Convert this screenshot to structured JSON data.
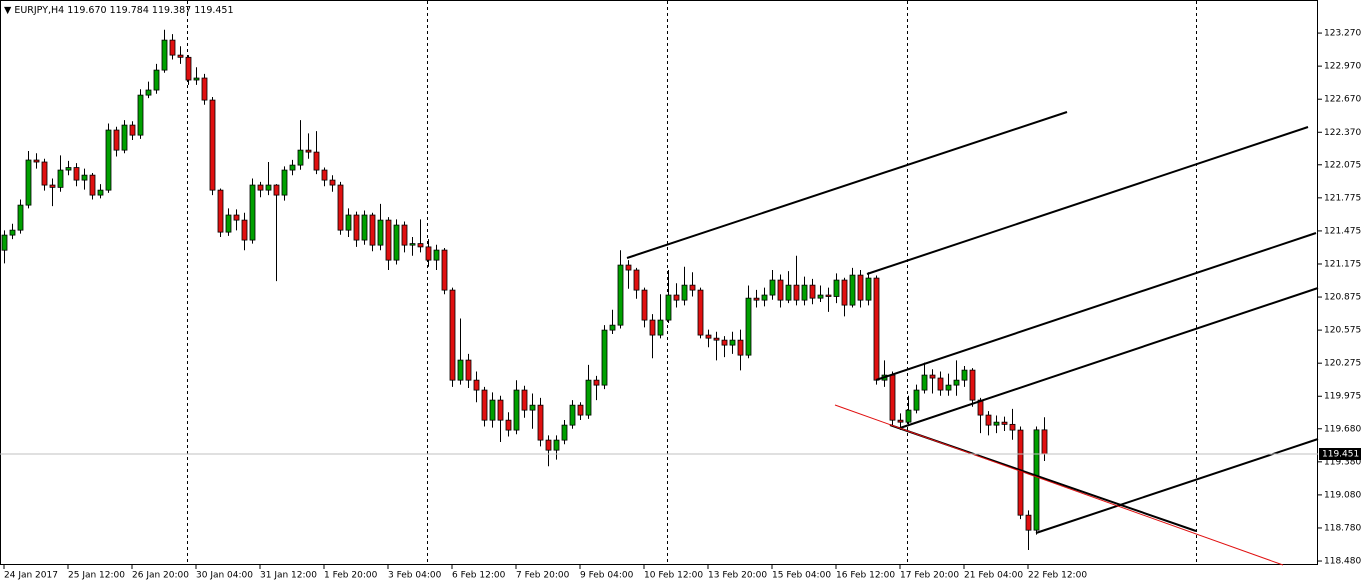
{
  "chart_data": {
    "type": "candlestick",
    "title": "EURJPY,H4",
    "header_labels": [
      "119.670",
      "119.784",
      "119.387",
      "119.451"
    ],
    "bull_color": "#00a000",
    "bear_color": "#e01010",
    "ylim": [
      118.444,
      123.57
    ],
    "xlim": [
      -0.5,
      164.25
    ],
    "yticks": [
      {
        "value": 123.27,
        "label": "123.270"
      },
      {
        "value": 122.97,
        "label": "122.970"
      },
      {
        "value": 122.67,
        "label": "122.670"
      },
      {
        "value": 122.37,
        "label": "122.370"
      },
      {
        "value": 122.075,
        "label": "122.075"
      },
      {
        "value": 121.775,
        "label": "121.775"
      },
      {
        "value": 121.475,
        "label": "121.475"
      },
      {
        "value": 121.175,
        "label": "121.175"
      },
      {
        "value": 120.875,
        "label": "120.875"
      },
      {
        "value": 120.575,
        "label": "120.575"
      },
      {
        "value": 120.275,
        "label": "120.275"
      },
      {
        "value": 119.975,
        "label": "119.975"
      },
      {
        "value": 119.68,
        "label": "119.680"
      },
      {
        "value": 119.38,
        "label": "119.380"
      },
      {
        "value": 119.08,
        "label": "119.080"
      },
      {
        "value": 118.78,
        "label": "118.780"
      },
      {
        "value": 118.48,
        "label": "118.480"
      }
    ],
    "xticks": [
      {
        "value": 0,
        "label": "24 Jan 2017"
      },
      {
        "value": 8,
        "label": "25 Jan 12:00"
      },
      {
        "value": 16,
        "label": "26 Jan 20:00"
      },
      {
        "value": 24,
        "label": "30 Jan 04:00"
      },
      {
        "value": 32,
        "label": "31 Jan 12:00"
      },
      {
        "value": 40,
        "label": "1 Feb 20:00"
      },
      {
        "value": 48,
        "label": "3 Feb 04:00"
      },
      {
        "value": 56,
        "label": "6 Feb 12:00"
      },
      {
        "value": 64,
        "label": "7 Feb 20:00"
      },
      {
        "value": 72,
        "label": "9 Feb 04:00"
      },
      {
        "value": 80,
        "label": "10 Feb 12:00"
      },
      {
        "value": 88,
        "label": "13 Feb 20:00"
      },
      {
        "value": 96,
        "label": "15 Feb 04:00"
      },
      {
        "value": 104,
        "label": "16 Feb 12:00"
      },
      {
        "value": 112,
        "label": "17 Feb 20:00"
      },
      {
        "value": 120,
        "label": "21 Feb 04:00"
      },
      {
        "value": 128,
        "label": "22 Feb 12:00"
      }
    ],
    "candles": [
      [
        121.3,
        121.48,
        121.18,
        121.437
      ],
      [
        121.437,
        121.54,
        121.4,
        121.482
      ],
      [
        121.482,
        121.76,
        121.45,
        121.709
      ],
      [
        121.709,
        122.2,
        121.68,
        122.118
      ],
      [
        122.118,
        122.18,
        122.04,
        122.1
      ],
      [
        122.1,
        122.13,
        121.84,
        121.891
      ],
      [
        121.891,
        121.95,
        121.7,
        121.87
      ],
      [
        121.87,
        122.16,
        121.83,
        122.027
      ],
      [
        122.027,
        122.11,
        121.98,
        122.05
      ],
      [
        122.05,
        122.09,
        121.88,
        121.936
      ],
      [
        121.936,
        122.04,
        121.85,
        121.981
      ],
      [
        121.981,
        122.0,
        121.76,
        121.8
      ],
      [
        121.8,
        121.9,
        121.77,
        121.845
      ],
      [
        121.845,
        122.45,
        121.82,
        122.39
      ],
      [
        122.39,
        122.42,
        122.15,
        122.208
      ],
      [
        122.208,
        122.48,
        122.18,
        122.435
      ],
      [
        122.435,
        122.47,
        122.3,
        122.344
      ],
      [
        122.344,
        122.76,
        122.31,
        122.707
      ],
      [
        122.707,
        122.83,
        122.68,
        122.753
      ],
      [
        122.753,
        122.99,
        122.72,
        122.934
      ],
      [
        122.934,
        123.3,
        122.91,
        123.206
      ],
      [
        123.206,
        123.26,
        123.03,
        123.07
      ],
      [
        123.07,
        123.15,
        122.99,
        123.05
      ],
      [
        123.05,
        123.07,
        122.8,
        122.844
      ],
      [
        122.844,
        122.96,
        122.8,
        122.862
      ],
      [
        122.862,
        122.9,
        122.62,
        122.662
      ],
      [
        122.662,
        122.69,
        121.8,
        121.845
      ],
      [
        121.845,
        121.86,
        121.42,
        121.464
      ],
      [
        121.464,
        121.68,
        121.43,
        121.619
      ],
      [
        121.619,
        121.67,
        121.48,
        121.573
      ],
      [
        121.573,
        121.64,
        121.3,
        121.392
      ],
      [
        121.392,
        121.95,
        121.36,
        121.891
      ],
      [
        121.891,
        121.92,
        121.78,
        121.845
      ],
      [
        121.845,
        122.1,
        121.8,
        121.891
      ],
      [
        121.891,
        121.9,
        121.02,
        121.8
      ],
      [
        121.8,
        122.06,
        121.75,
        122.027
      ],
      [
        122.027,
        122.12,
        121.98,
        122.072
      ],
      [
        122.072,
        122.48,
        122.03,
        122.208
      ],
      [
        122.208,
        122.36,
        122.13,
        122.19
      ],
      [
        122.19,
        122.38,
        121.99,
        122.027
      ],
      [
        122.027,
        122.05,
        121.88,
        121.936
      ],
      [
        121.936,
        121.98,
        121.83,
        121.891
      ],
      [
        121.891,
        121.92,
        121.44,
        121.482
      ],
      [
        121.482,
        121.68,
        121.42,
        121.619
      ],
      [
        121.619,
        121.65,
        121.33,
        121.392
      ],
      [
        121.392,
        121.66,
        121.35,
        121.619
      ],
      [
        121.619,
        121.64,
        121.29,
        121.346
      ],
      [
        121.346,
        121.72,
        121.3,
        121.573
      ],
      [
        121.573,
        121.6,
        121.12,
        121.21
      ],
      [
        121.21,
        121.58,
        121.17,
        121.528
      ],
      [
        121.528,
        121.56,
        121.28,
        121.346
      ],
      [
        121.346,
        121.42,
        121.25,
        121.36
      ],
      [
        121.36,
        121.58,
        121.28,
        121.33
      ],
      [
        121.33,
        121.4,
        121.15,
        121.21
      ],
      [
        121.21,
        121.35,
        121.12,
        121.301
      ],
      [
        121.301,
        121.32,
        120.9,
        120.938
      ],
      [
        120.938,
        120.96,
        120.06,
        120.121
      ],
      [
        120.121,
        120.68,
        120.08,
        120.303
      ],
      [
        120.303,
        120.36,
        120.05,
        120.121
      ],
      [
        120.121,
        120.2,
        119.92,
        120.031
      ],
      [
        120.031,
        120.06,
        119.7,
        119.758
      ],
      [
        119.758,
        120.01,
        119.69,
        119.94
      ],
      [
        119.94,
        119.98,
        119.56,
        119.758
      ],
      [
        119.758,
        119.83,
        119.61,
        119.668
      ],
      [
        119.668,
        120.12,
        119.63,
        120.031
      ],
      [
        120.031,
        120.07,
        119.78,
        119.849
      ],
      [
        119.849,
        120.0,
        119.68,
        119.894
      ],
      [
        119.894,
        119.96,
        119.52,
        119.577
      ],
      [
        119.577,
        119.62,
        119.34,
        119.486
      ],
      [
        119.486,
        119.62,
        119.4,
        119.577
      ],
      [
        119.577,
        119.76,
        119.54,
        119.713
      ],
      [
        119.713,
        119.94,
        119.68,
        119.894
      ],
      [
        119.894,
        119.92,
        119.76,
        119.804
      ],
      [
        119.804,
        120.26,
        119.77,
        120.121
      ],
      [
        120.121,
        120.16,
        119.94,
        120.076
      ],
      [
        120.076,
        120.62,
        120.04,
        120.575
      ],
      [
        120.575,
        120.76,
        120.54,
        120.62
      ],
      [
        120.62,
        121.3,
        120.59,
        121.165
      ],
      [
        121.165,
        121.21,
        120.95,
        121.12
      ],
      [
        121.12,
        121.14,
        120.86,
        120.938
      ],
      [
        120.938,
        120.96,
        120.6,
        120.666
      ],
      [
        120.666,
        120.72,
        120.32,
        120.53
      ],
      [
        120.53,
        120.9,
        120.5,
        120.666
      ],
      [
        120.666,
        121.12,
        120.64,
        120.893
      ],
      [
        120.893,
        121.0,
        120.78,
        120.847
      ],
      [
        120.847,
        121.15,
        120.8,
        120.983
      ],
      [
        120.983,
        121.1,
        120.88,
        120.938
      ],
      [
        120.938,
        120.96,
        120.5,
        120.53
      ],
      [
        120.53,
        120.58,
        120.42,
        120.502
      ],
      [
        120.502,
        120.56,
        120.3,
        120.484
      ],
      [
        120.484,
        120.52,
        120.33,
        120.439
      ],
      [
        120.439,
        120.56,
        120.36,
        120.484
      ],
      [
        120.484,
        120.58,
        120.21,
        120.348
      ],
      [
        120.348,
        120.98,
        120.32,
        120.865
      ],
      [
        120.865,
        120.94,
        120.78,
        120.847
      ],
      [
        120.847,
        120.96,
        120.79,
        120.893
      ],
      [
        120.893,
        121.12,
        120.85,
        121.029
      ],
      [
        121.029,
        121.08,
        120.78,
        120.847
      ],
      [
        120.847,
        121.11,
        120.82,
        120.983
      ],
      [
        120.983,
        121.25,
        120.8,
        120.847
      ],
      [
        120.847,
        121.06,
        120.8,
        120.983
      ],
      [
        120.983,
        121.04,
        120.81,
        120.865
      ],
      [
        120.865,
        120.98,
        120.83,
        120.893
      ],
      [
        120.893,
        120.96,
        120.74,
        120.88
      ],
      [
        120.88,
        121.09,
        120.82,
        121.029
      ],
      [
        121.029,
        121.05,
        120.7,
        120.802
      ],
      [
        120.802,
        121.14,
        120.78,
        121.074
      ],
      [
        121.074,
        121.12,
        120.78,
        120.847
      ],
      [
        120.847,
        121.1,
        120.8,
        121.047
      ],
      [
        121.047,
        121.07,
        120.08,
        120.121
      ],
      [
        120.121,
        120.3,
        120.06,
        120.167
      ],
      [
        120.167,
        120.2,
        119.7,
        119.758
      ],
      [
        119.758,
        119.82,
        119.67,
        119.74
      ],
      [
        119.74,
        119.98,
        119.72,
        119.849
      ],
      [
        119.849,
        120.08,
        119.82,
        120.031
      ],
      [
        120.031,
        120.28,
        120.0,
        120.167
      ],
      [
        120.167,
        120.22,
        120.0,
        120.14
      ],
      [
        120.14,
        120.2,
        119.98,
        120.031
      ],
      [
        120.031,
        120.18,
        119.98,
        120.076
      ],
      [
        120.076,
        120.3,
        119.98,
        120.121
      ],
      [
        120.121,
        120.25,
        120.06,
        120.212
      ],
      [
        120.212,
        120.23,
        119.88,
        119.94
      ],
      [
        119.94,
        119.96,
        119.64,
        119.804
      ],
      [
        119.804,
        119.84,
        119.62,
        119.713
      ],
      [
        119.713,
        119.8,
        119.64,
        119.74
      ],
      [
        119.74,
        119.79,
        119.66,
        119.72
      ],
      [
        119.72,
        119.86,
        119.58,
        119.668
      ],
      [
        119.668,
        119.7,
        118.86,
        118.896
      ],
      [
        118.896,
        118.94,
        118.58,
        118.76
      ],
      [
        118.76,
        119.7,
        118.72,
        119.67
      ],
      [
        119.67,
        119.784,
        119.387,
        119.451
      ]
    ]
  }
}
